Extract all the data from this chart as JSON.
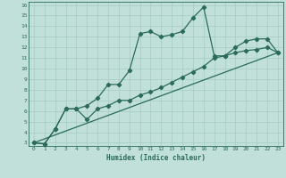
{
  "xlabel": "Humidex (Indice chaleur)",
  "background_color": "#c2e0da",
  "grid_color": "#a8cec8",
  "line_color": "#2a6b5a",
  "xlim": [
    -0.5,
    23.5
  ],
  "ylim": [
    2.7,
    16.3
  ],
  "xticks": [
    0,
    1,
    2,
    3,
    4,
    5,
    6,
    7,
    8,
    9,
    10,
    11,
    12,
    13,
    14,
    15,
    16,
    17,
    18,
    19,
    20,
    21,
    22,
    23
  ],
  "yticks": [
    3,
    4,
    5,
    6,
    7,
    8,
    9,
    10,
    11,
    12,
    13,
    14,
    15,
    16
  ],
  "line1_x": [
    0,
    1,
    2,
    3,
    4,
    5,
    6,
    7,
    8,
    9,
    10,
    11,
    12,
    13,
    14,
    15,
    16,
    17,
    18,
    19,
    20,
    21,
    22,
    23
  ],
  "line1_y": [
    3.0,
    2.9,
    4.3,
    6.2,
    6.2,
    6.5,
    7.2,
    8.5,
    8.5,
    9.8,
    13.3,
    13.5,
    13.0,
    13.2,
    13.5,
    14.8,
    15.8,
    11.2,
    11.2,
    12.0,
    12.6,
    12.8,
    12.8,
    11.5
  ],
  "line2_x": [
    0,
    1,
    2,
    3,
    4,
    5,
    6,
    7,
    8,
    9,
    10,
    11,
    12,
    13,
    14,
    15,
    16,
    17,
    18,
    19,
    20,
    21,
    22,
    23
  ],
  "line2_y": [
    3.0,
    2.9,
    4.3,
    6.2,
    6.2,
    5.2,
    6.2,
    6.5,
    7.0,
    7.0,
    7.5,
    7.8,
    8.2,
    8.7,
    9.2,
    9.7,
    10.2,
    11.0,
    11.2,
    11.5,
    11.7,
    11.8,
    12.0,
    11.5
  ],
  "line3_x": [
    0,
    23
  ],
  "line3_y": [
    3.0,
    11.5
  ],
  "marker_size": 2.2,
  "line_width": 0.9
}
